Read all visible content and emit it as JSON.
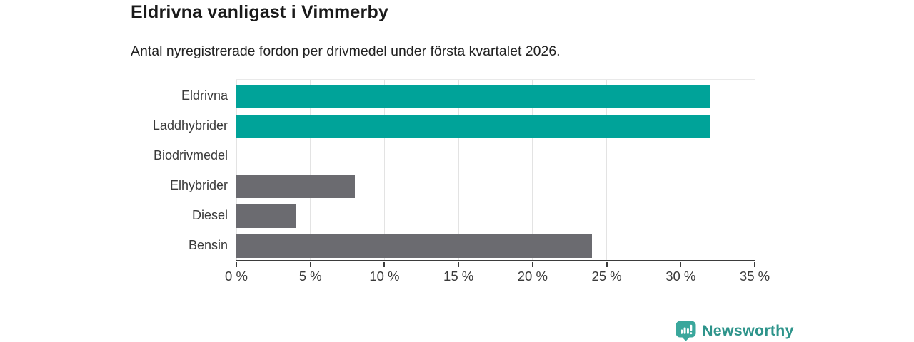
{
  "header": {
    "title": "Eldrivna vanligast i Vimmerby",
    "subtitle": "Antal nyregistrerade fordon per drivmedel under första kvartalet 2026."
  },
  "chart_data": {
    "type": "bar",
    "orientation": "horizontal",
    "title": "Eldrivna vanligast i Vimmerby",
    "subtitle": "Antal nyregistrerade fordon per drivmedel under första kvartalet 2026.",
    "categories": [
      "Eldrivna",
      "Laddhybrider",
      "Biodrivmedel",
      "Elhybrider",
      "Diesel",
      "Bensin"
    ],
    "values": [
      32,
      32,
      0,
      8,
      4,
      24
    ],
    "unit": "%",
    "xlim": [
      0,
      35
    ],
    "x_tick_values": [
      0,
      5,
      10,
      15,
      20,
      25,
      30,
      35
    ],
    "x_tick_labels": [
      "0 %",
      "5 %",
      "10 %",
      "15 %",
      "20 %",
      "25 %",
      "30 %",
      "35 %"
    ],
    "grid": true,
    "bar_colors": [
      "#00a399",
      "#00a399",
      "#6b6b70",
      "#6b6b70",
      "#6b6b70",
      "#6b6b70"
    ],
    "highlight_color": "#00a399",
    "default_color": "#6b6b70",
    "gridline_color": "#e3e3e3",
    "axis_color": "#3b3b3b",
    "label_color": "#3a3a3a"
  },
  "branding": {
    "logo_text": "Newsworthy",
    "text_color": "#2e948b",
    "icon_color": "#3aa79c",
    "icon_glyph_color": "#ffffff"
  }
}
